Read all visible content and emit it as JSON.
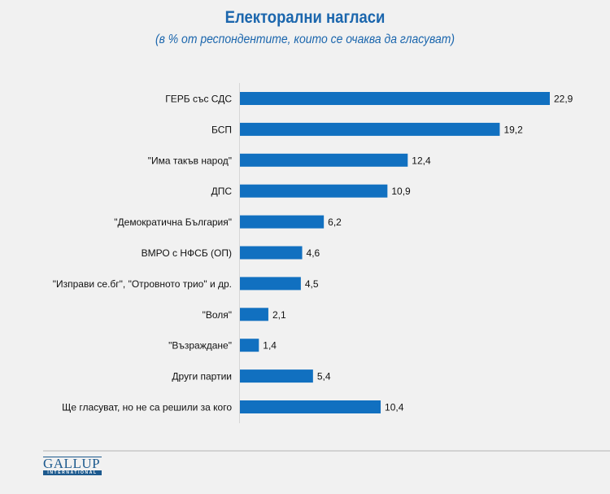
{
  "chart_data": {
    "type": "bar",
    "orientation": "horizontal",
    "title": "Електорални нагласи",
    "subtitle": "(в % от респондентите, които се очаква да гласуват)",
    "categories": [
      "ГЕРБ със СДС",
      "БСП",
      "\"Има такъв народ\"",
      "ДПС",
      "\"Демократична България\"",
      "ВМРО с НФСБ (ОП)",
      "\"Изправи се.бг\", \"Отровното трио\" и др.",
      "\"Воля\"",
      "\"Възраждане\"",
      "Други партии",
      "Ще гласуват, но не са решили за кого"
    ],
    "values": [
      22.9,
      19.2,
      12.4,
      10.9,
      6.2,
      4.6,
      4.5,
      2.1,
      1.4,
      5.4,
      10.4
    ],
    "data_labels": [
      "22,9",
      "19,2",
      "12,4",
      "10,9",
      "6,2",
      "4,6",
      "4,5",
      "2,1",
      "1,4",
      "5,4",
      "10,4"
    ],
    "bar_color": "#1170c0",
    "grid": false
  },
  "logo": {
    "text": "GALLUP",
    "sub": "INTERNATIONAL"
  }
}
